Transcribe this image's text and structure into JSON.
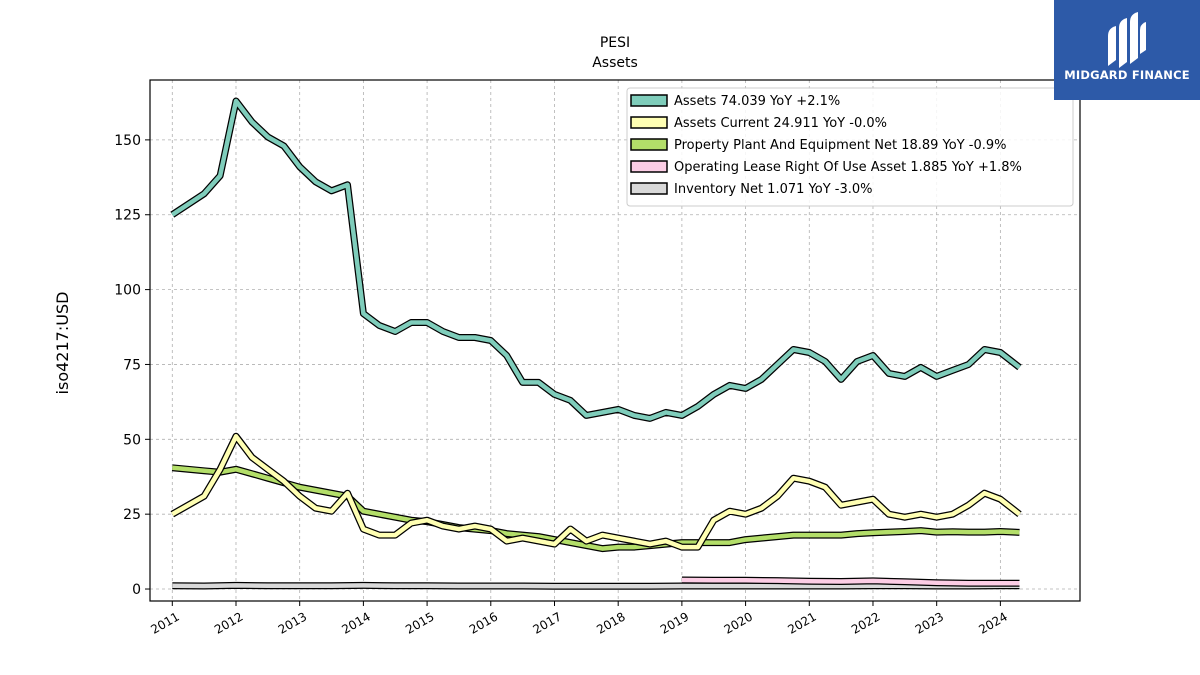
{
  "brand": {
    "name": "MIDGARD FINANCE",
    "bg_color": "#2d5aa8"
  },
  "chart_data": {
    "type": "line",
    "title": "PESI",
    "subtitle": "Assets",
    "ylabel": "iso4217:USD",
    "xlabel": "",
    "ylim": [
      -4,
      170
    ],
    "xlim": [
      2010.65,
      2025.25
    ],
    "yticks": [
      0,
      25,
      50,
      75,
      100,
      125,
      150
    ],
    "xticks": [
      "2011",
      "2012",
      "2013",
      "2014",
      "2015",
      "2016",
      "2017",
      "2018",
      "2019",
      "2020",
      "2021",
      "2022",
      "2023",
      "2024"
    ],
    "grid": true,
    "legend_position": "top-right",
    "series": [
      {
        "name": "Assets  74.039 YoY +2.1%",
        "color": "#7fcdbb",
        "x": [
          2011.0,
          2011.5,
          2011.75,
          2012.0,
          2012.25,
          2012.5,
          2012.75,
          2013.0,
          2013.25,
          2013.5,
          2013.75,
          2014.0,
          2014.25,
          2014.5,
          2014.75,
          2015.0,
          2015.25,
          2015.5,
          2015.75,
          2016.0,
          2016.25,
          2016.5,
          2016.75,
          2017.0,
          2017.25,
          2017.5,
          2017.75,
          2018.0,
          2018.25,
          2018.5,
          2018.75,
          2019.0,
          2019.25,
          2019.5,
          2019.75,
          2020.0,
          2020.25,
          2020.5,
          2020.75,
          2021.0,
          2021.25,
          2021.5,
          2021.75,
          2022.0,
          2022.25,
          2022.5,
          2022.75,
          2023.0,
          2023.25,
          2023.5,
          2023.75,
          2024.0,
          2024.3
        ],
        "y": [
          125,
          132,
          138,
          163,
          156,
          151,
          148,
          141,
          136,
          133,
          135,
          92,
          88,
          86,
          89,
          89,
          86,
          84,
          84,
          83,
          78,
          69,
          69,
          65,
          63,
          58,
          59,
          60,
          58,
          57,
          59,
          58,
          61,
          65,
          68,
          67,
          70,
          75,
          80,
          79,
          76,
          70,
          76,
          78,
          72,
          71,
          74,
          71,
          73,
          75,
          80,
          79,
          74
        ]
      },
      {
        "name": "Assets Current  24.911 YoY -0.0%",
        "color": "#ffffb3",
        "x": [
          2011.0,
          2011.5,
          2011.75,
          2012.0,
          2012.25,
          2012.5,
          2012.75,
          2013.0,
          2013.25,
          2013.5,
          2013.75,
          2014.0,
          2014.25,
          2014.5,
          2014.75,
          2015.0,
          2015.25,
          2015.5,
          2015.75,
          2016.0,
          2016.25,
          2016.5,
          2016.75,
          2017.0,
          2017.25,
          2017.5,
          2017.75,
          2018.0,
          2018.25,
          2018.5,
          2018.75,
          2019.0,
          2019.25,
          2019.5,
          2019.75,
          2020.0,
          2020.25,
          2020.5,
          2020.75,
          2021.0,
          2021.25,
          2021.5,
          2021.75,
          2022.0,
          2022.25,
          2022.5,
          2022.75,
          2023.0,
          2023.25,
          2023.5,
          2023.75,
          2024.0,
          2024.3
        ],
        "y": [
          25,
          31,
          40,
          51,
          44,
          40,
          36,
          31,
          27,
          26,
          32,
          20,
          18,
          18,
          22,
          23,
          21,
          20,
          21,
          20,
          16,
          17,
          16,
          15,
          20,
          16,
          18,
          17,
          16,
          15,
          16,
          14,
          14,
          23,
          26,
          25,
          27,
          31,
          37,
          36,
          34,
          28,
          29,
          30,
          25,
          24,
          25,
          24,
          25,
          28,
          32,
          30,
          25
        ]
      },
      {
        "name": "Property Plant And Equipment Net  18.89 YoY -0.9%",
        "color": "#b3de69",
        "x": [
          2011.0,
          2011.5,
          2011.75,
          2012.0,
          2012.25,
          2012.5,
          2012.75,
          2013.0,
          2013.25,
          2013.5,
          2013.75,
          2014.0,
          2014.25,
          2014.5,
          2014.75,
          2015.0,
          2015.25,
          2015.5,
          2015.75,
          2016.0,
          2016.25,
          2016.5,
          2016.75,
          2017.0,
          2017.25,
          2017.5,
          2017.75,
          2018.0,
          2018.25,
          2018.5,
          2018.75,
          2019.0,
          2019.25,
          2019.5,
          2019.75,
          2020.0,
          2020.25,
          2020.5,
          2020.75,
          2021.0,
          2021.25,
          2021.5,
          2021.75,
          2022.0,
          2022.25,
          2022.5,
          2022.75,
          2023.0,
          2023.25,
          2023.5,
          2023.75,
          2024.0,
          2024.3
        ],
        "y": [
          40.5,
          39.5,
          39,
          40,
          38.5,
          37,
          35.5,
          34,
          33,
          32,
          31,
          26,
          25,
          24,
          23,
          22.5,
          21.5,
          20.5,
          20,
          19.5,
          18.5,
          18,
          17.5,
          16.5,
          15.5,
          14.5,
          13.5,
          14,
          14,
          14.5,
          15,
          15.5,
          15.5,
          15.5,
          15.5,
          16.5,
          17,
          17.5,
          18,
          18,
          18,
          18,
          18.5,
          18.8,
          19,
          19.2,
          19.5,
          19,
          19.1,
          19,
          19,
          19.2,
          18.9
        ]
      },
      {
        "name": "Operating Lease Right Of Use Asset  1.885 YoY +1.8%",
        "color": "#fccde5",
        "x": [
          2019.0,
          2019.5,
          2020.0,
          2020.5,
          2021.0,
          2021.5,
          2022.0,
          2022.5,
          2023.0,
          2023.5,
          2024.0,
          2024.3
        ],
        "y": [
          3.0,
          2.9,
          2.9,
          2.8,
          2.6,
          2.5,
          2.7,
          2.4,
          2.1,
          1.9,
          1.9,
          1.9
        ]
      },
      {
        "name": "Inventory Net  1.071 YoY -3.0%",
        "color": "#d9d9d9",
        "x": [
          2011.0,
          2011.5,
          2012.0,
          2012.5,
          2013.0,
          2013.5,
          2014.0,
          2014.5,
          2015.0,
          2015.5,
          2016.0,
          2016.5,
          2017.0,
          2017.5,
          2018.0,
          2018.5,
          2019.0,
          2019.5,
          2020.0,
          2020.5,
          2021.0,
          2021.5,
          2022.0,
          2022.5,
          2023.0,
          2023.5,
          2024.0,
          2024.3
        ],
        "y": [
          1.1,
          1.0,
          1.2,
          1.1,
          1.1,
          1.1,
          1.2,
          1.1,
          1.1,
          1.0,
          1.0,
          1.0,
          0.9,
          0.9,
          0.9,
          0.9,
          1.0,
          1.0,
          1.0,
          1.0,
          1.0,
          1.0,
          1.1,
          1.1,
          1.0,
          1.0,
          1.1,
          1.07
        ]
      }
    ]
  }
}
